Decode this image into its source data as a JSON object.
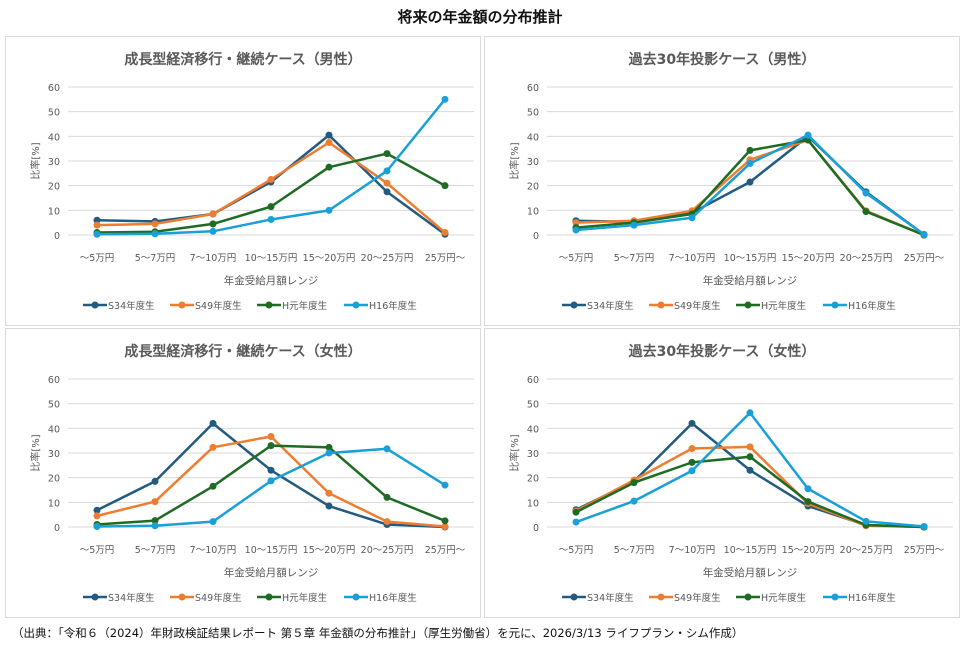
{
  "title": "将来の年金額の分布推計",
  "footer": "（出典：「令和６（2024）年財政検証結果レポート 第５章 年金額の分布推計」（厚生労働省）を元に、2026/3/13 ライフプラン・シム作成）",
  "chart_data": [
    {
      "type": "line",
      "title": "成長型経済移行・継続ケース（男性）",
      "xlabel": "年金受給月額レンジ",
      "ylabel": "比率[%]",
      "ylim": [
        0,
        60
      ],
      "yticks": [
        "0",
        "10",
        "20",
        "30",
        "40",
        "50",
        "60"
      ],
      "grid": true,
      "legend": "bottom",
      "categories": [
        "～5万円",
        "5～7万円",
        "7～10万円",
        "10～15万円",
        "15～20万円",
        "20～25万円",
        "25万円～"
      ],
      "series": [
        {
          "name": "S34年度生",
          "color": "#235b80",
          "values": [
            6,
            5.5,
            8.5,
            21.5,
            40.5,
            17.5,
            0.3
          ]
        },
        {
          "name": "S49年度生",
          "color": "#ed7d31",
          "values": [
            4,
            4.5,
            8.5,
            22.5,
            37.5,
            21,
            1
          ]
        },
        {
          "name": "H元年度生",
          "color": "#1e6b24",
          "values": [
            1,
            1.3,
            4.5,
            11.5,
            27.5,
            33,
            20
          ]
        },
        {
          "name": "H16年度生",
          "color": "#1aa0d8",
          "values": [
            0.3,
            0.5,
            1.5,
            6.3,
            10,
            26,
            55
          ]
        }
      ]
    },
    {
      "type": "line",
      "title": "過去30年投影ケース（男性）",
      "xlabel": "年金受給月額レンジ",
      "ylabel": "比率[%]",
      "ylim": [
        0,
        60
      ],
      "yticks": [
        "0",
        "10",
        "20",
        "30",
        "40",
        "50",
        "60"
      ],
      "grid": true,
      "legend": "bottom",
      "categories": [
        "～5万円",
        "5～7万円",
        "7～10万円",
        "10～15万円",
        "15～20万円",
        "20～25万円",
        "25万円～"
      ],
      "series": [
        {
          "name": "S34年度生",
          "color": "#235b80",
          "values": [
            5.8,
            5.3,
            9,
            21.5,
            40,
            17.5,
            0.2
          ]
        },
        {
          "name": "S49年度生",
          "color": "#ed7d31",
          "values": [
            5,
            5.8,
            9.8,
            30.5,
            38.5,
            9.8,
            0
          ]
        },
        {
          "name": "H元年度生",
          "color": "#1e6b24",
          "values": [
            3,
            5,
            8.5,
            34.3,
            38.5,
            9.5,
            0
          ]
        },
        {
          "name": "H16年度生",
          "color": "#1aa0d8",
          "values": [
            2,
            4,
            7,
            29,
            40.5,
            17,
            0.2
          ]
        }
      ]
    },
    {
      "type": "line",
      "title": "成長型経済移行・継続ケース（女性）",
      "xlabel": "年金受給月額レンジ",
      "ylabel": "比率[%]",
      "ylim": [
        0,
        60
      ],
      "yticks": [
        "0",
        "10",
        "20",
        "30",
        "40",
        "50",
        "60"
      ],
      "grid": true,
      "legend": "bottom",
      "categories": [
        "～5万円",
        "5～7万円",
        "7～10万円",
        "10～15万円",
        "15～20万円",
        "20～25万円",
        "25万円～"
      ],
      "series": [
        {
          "name": "S34年度生",
          "color": "#235b80",
          "values": [
            6.8,
            18.5,
            42,
            23,
            8.5,
            1,
            0
          ]
        },
        {
          "name": "S49年度生",
          "color": "#ed7d31",
          "values": [
            4.5,
            10.3,
            32.3,
            36.7,
            13.7,
            2.2,
            0.2
          ]
        },
        {
          "name": "H元年度生",
          "color": "#1e6b24",
          "values": [
            1,
            2.6,
            16.5,
            33,
            32.3,
            12,
            2.5
          ]
        },
        {
          "name": "H16年度生",
          "color": "#1aa0d8",
          "values": [
            0.2,
            0.5,
            2.2,
            18.7,
            30,
            31.7,
            17
          ]
        }
      ]
    },
    {
      "type": "line",
      "title": "過去30年投影ケース（女性）",
      "xlabel": "年金受給月額レンジ",
      "ylabel": "比率[%]",
      "ylim": [
        0,
        60
      ],
      "yticks": [
        "0",
        "10",
        "20",
        "30",
        "40",
        "50",
        "60"
      ],
      "grid": true,
      "legend": "bottom",
      "categories": [
        "～5万円",
        "5～7万円",
        "7～10万円",
        "10～15万円",
        "15～20万円",
        "20～25万円",
        "25万円～"
      ],
      "series": [
        {
          "name": "S34年度生",
          "color": "#235b80",
          "values": [
            7,
            18.5,
            42,
            23,
            8.5,
            0.8,
            0
          ]
        },
        {
          "name": "S49年度生",
          "color": "#ed7d31",
          "values": [
            6.5,
            19,
            31.8,
            32.5,
            9.5,
            0.5,
            0
          ]
        },
        {
          "name": "H元年度生",
          "color": "#1e6b24",
          "values": [
            6,
            18,
            26.2,
            28.5,
            10.3,
            0.8,
            0
          ]
        },
        {
          "name": "H16年度生",
          "color": "#1aa0d8",
          "values": [
            2,
            10.5,
            22.8,
            46.3,
            15.5,
            2.3,
            0.2
          ]
        }
      ]
    }
  ]
}
